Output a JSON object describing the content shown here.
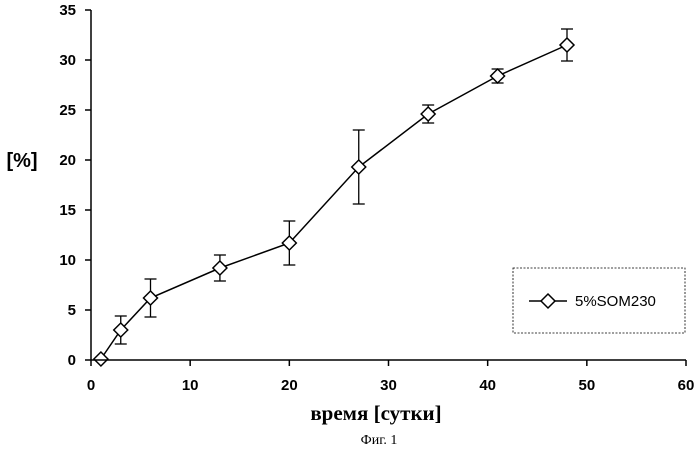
{
  "chart_data": {
    "type": "line",
    "xlabel": "время [сутки]",
    "ylabel": "[%]",
    "caption": "Фиг. 1",
    "xlim": [
      0,
      60
    ],
    "ylim": [
      0,
      35
    ],
    "x_ticks": [
      0,
      10,
      20,
      30,
      40,
      50,
      60
    ],
    "y_ticks": [
      0,
      5,
      10,
      15,
      20,
      25,
      30,
      35
    ],
    "grid": false,
    "legend_position": "right",
    "marker": "diamond",
    "series": [
      {
        "name": "5%SOM230",
        "color": "#000000",
        "x": [
          1,
          3,
          6,
          13,
          20,
          27,
          34,
          41,
          48
        ],
        "y": [
          0.1,
          3.0,
          6.2,
          9.2,
          11.7,
          19.3,
          24.6,
          28.4,
          31.5
        ],
        "error": [
          0,
          1.4,
          1.9,
          1.3,
          2.2,
          3.7,
          0.9,
          0.7,
          1.6
        ]
      }
    ]
  }
}
